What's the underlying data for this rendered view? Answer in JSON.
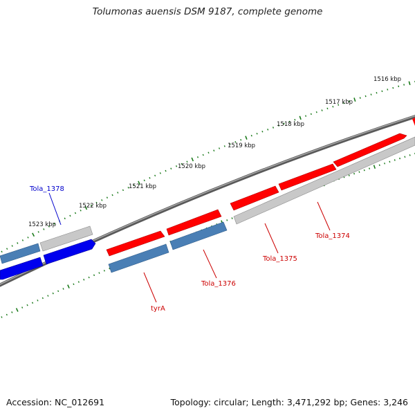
{
  "title": "Tolumonas auensis DSM 9187, complete genome",
  "accession": "Accession: NC_012691",
  "topology": "Topology: circular; Length: 3,471,292 bp; Genes: 3,246",
  "ruler": {
    "labels": [
      "1516 kbp",
      "1517 kbp",
      "1518 kbp",
      "1519 kbp",
      "1520 kbp",
      "1521 kbp",
      "1522 kbp",
      "1523 kbp"
    ]
  },
  "genes": [
    {
      "label": "Tola_1378",
      "color": "#0000cc"
    },
    {
      "label": "Tola_1374",
      "color": "#cc0000"
    },
    {
      "label": "Tola_1375",
      "color": "#cc0000"
    },
    {
      "label": "Tola_1376",
      "color": "#cc0000"
    },
    {
      "label": "tyrA",
      "color": "#cc0000"
    }
  ],
  "colors": {
    "tick": "#1a7a1a",
    "backbone": "#707070",
    "red_gene": "#ff0000",
    "blue_gene": "#0000ee",
    "steel_gene": "#4a7fb5",
    "grey_gene": "#c8c8c8"
  }
}
